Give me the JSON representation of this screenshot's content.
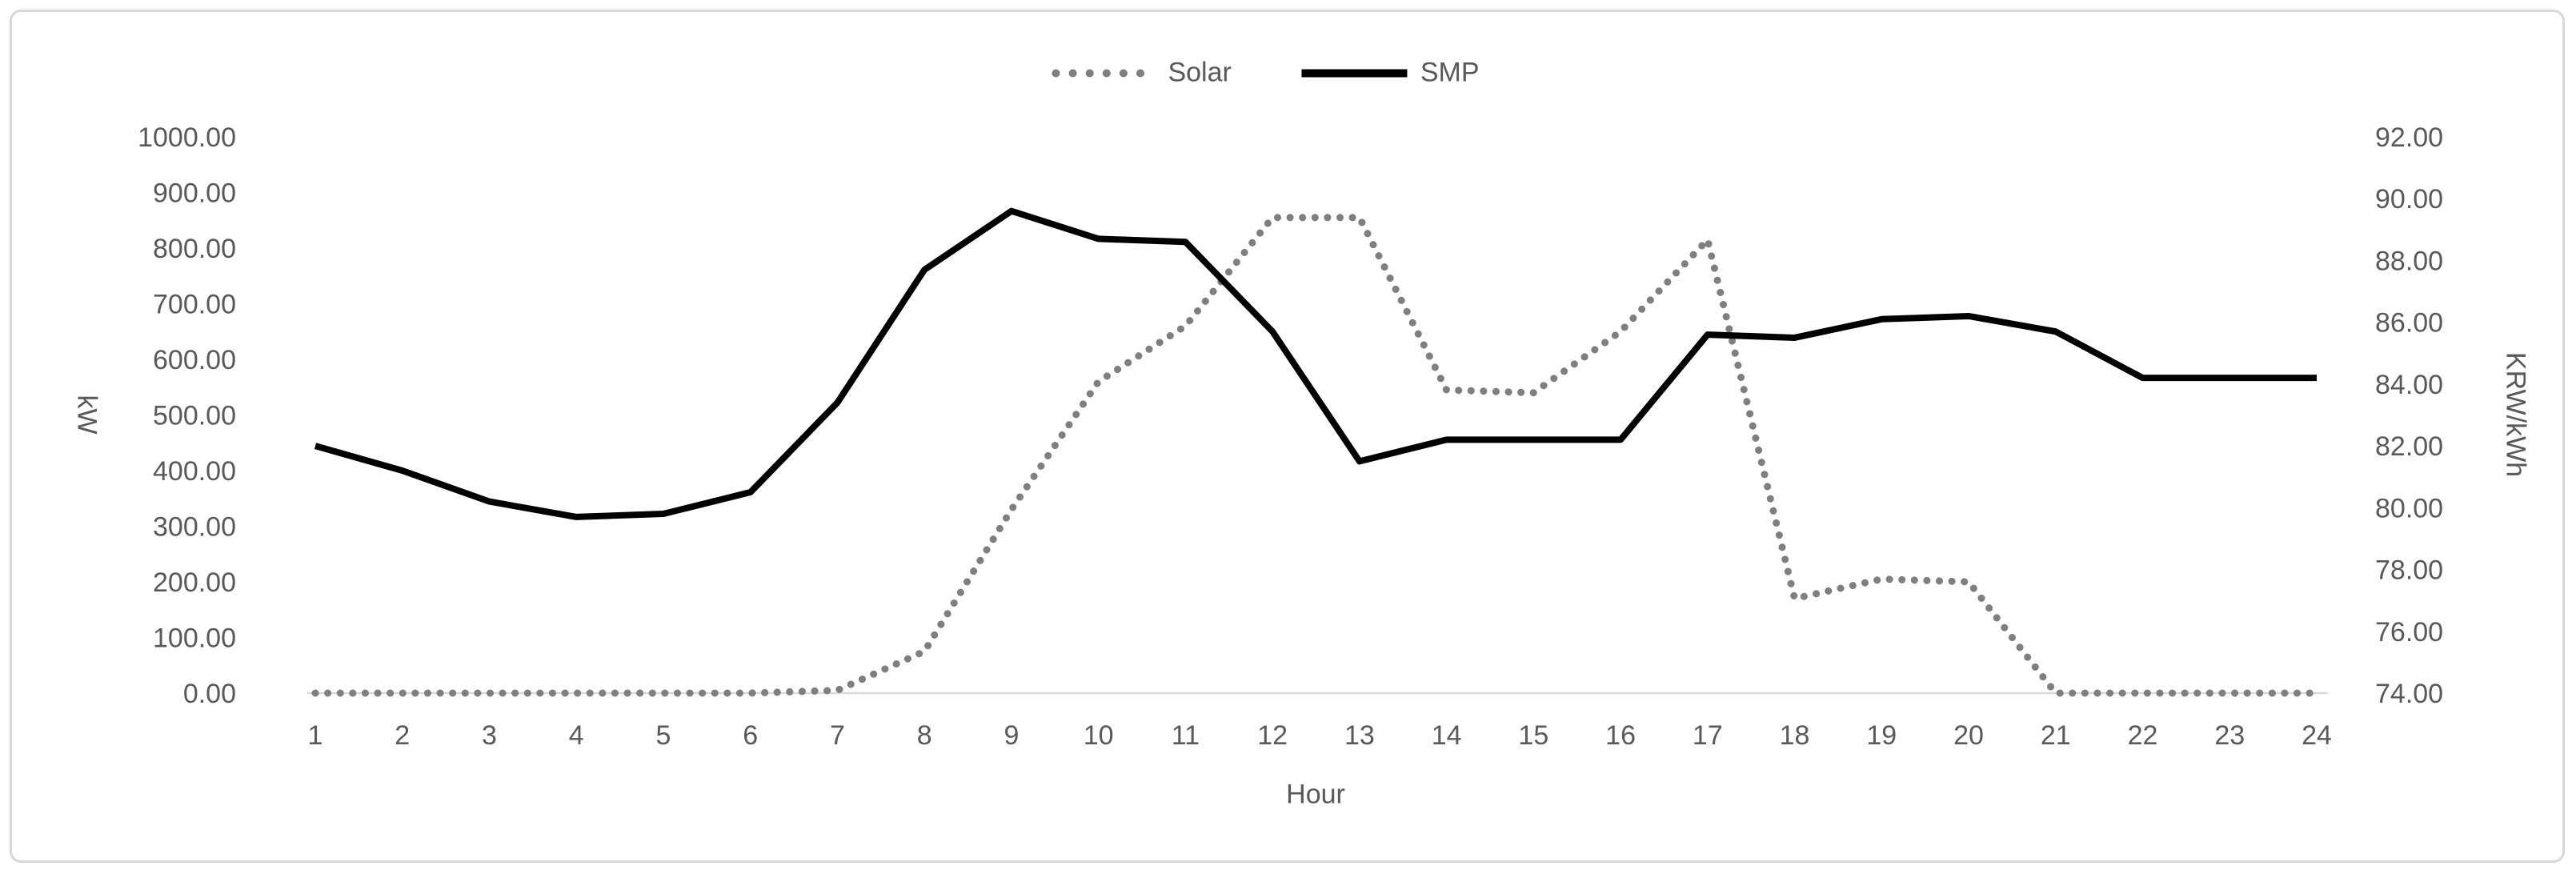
{
  "legend": {
    "solar_label": "Solar",
    "smp_label": "SMP"
  },
  "colors": {
    "solar_series": "#7F7F7F",
    "smp_series": "#000000",
    "axis_text": "#595959",
    "axis_line": "#D9D9D9",
    "figure_border": "#D7D7D7"
  },
  "chart_data": {
    "type": "line",
    "title": "",
    "xlabel": "Hour",
    "x": [
      1,
      2,
      3,
      4,
      5,
      6,
      7,
      8,
      9,
      10,
      11,
      12,
      13,
      14,
      15,
      16,
      17,
      18,
      19,
      20,
      21,
      22,
      23,
      24
    ],
    "x_tick_labels": [
      "1",
      "2",
      "3",
      "4",
      "5",
      "6",
      "7",
      "8",
      "9",
      "10",
      "11",
      "12",
      "13",
      "14",
      "15",
      "16",
      "17",
      "18",
      "19",
      "20",
      "21",
      "22",
      "23",
      "24"
    ],
    "series": [
      {
        "name": "Solar",
        "axis": "left",
        "style": "dotted",
        "color": "#7F7F7F",
        "values": [
          0,
          0,
          0,
          0,
          0,
          0,
          5,
          75,
          330,
          560,
          660,
          855,
          855,
          545,
          540,
          650,
          815,
          170,
          205,
          200,
          0,
          0,
          0,
          0
        ]
      },
      {
        "name": "SMP",
        "axis": "right",
        "style": "solid",
        "color": "#000000",
        "values": [
          82.0,
          81.2,
          80.2,
          79.7,
          79.8,
          80.5,
          83.4,
          87.7,
          89.6,
          88.7,
          88.6,
          85.7,
          81.5,
          82.2,
          82.2,
          82.2,
          85.6,
          85.5,
          86.1,
          86.2,
          85.7,
          84.2,
          84.2,
          84.2
        ]
      }
    ],
    "left_axis": {
      "title": "kW",
      "min": 0,
      "max": 1000,
      "step": 100,
      "tick_labels": [
        "0.00",
        "100.00",
        "200.00",
        "300.00",
        "400.00",
        "500.00",
        "600.00",
        "700.00",
        "800.00",
        "900.00",
        "1000.00"
      ]
    },
    "right_axis": {
      "title": "KRW/kWh",
      "min": 74,
      "max": 92,
      "step": 2,
      "tick_labels": [
        "74.00",
        "76.00",
        "78.00",
        "80.00",
        "82.00",
        "84.00",
        "86.00",
        "88.00",
        "90.00",
        "92.00"
      ]
    },
    "grid": "off",
    "legend_position": "top-center"
  }
}
